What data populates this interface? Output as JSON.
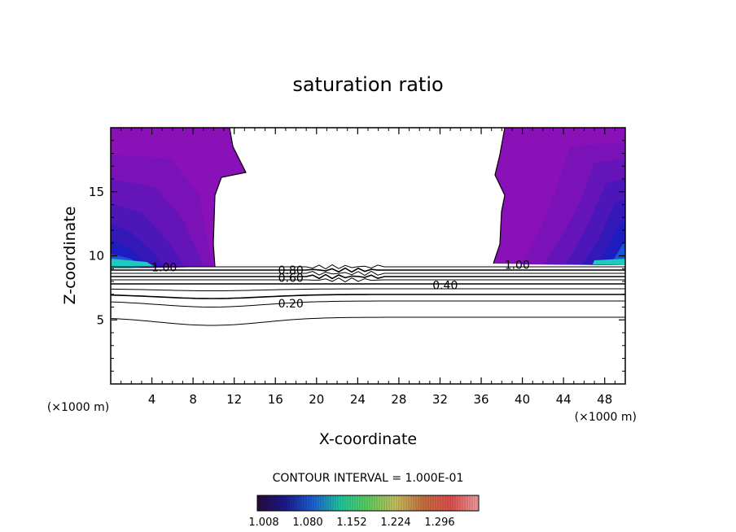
{
  "chart_data": {
    "type": "contour",
    "title": "saturation ratio",
    "xlabel": "X-coordinate",
    "ylabel": "Z-coordinate",
    "x_unit": "(×1000 m)",
    "y_unit": "(×1000 m)",
    "xlim": [
      0,
      50
    ],
    "ylim": [
      0,
      20
    ],
    "x_ticks": [
      4,
      8,
      12,
      16,
      20,
      24,
      28,
      32,
      36,
      40,
      44,
      48
    ],
    "y_ticks": [
      5,
      10,
      15
    ],
    "contour_interval_text": "CONTOUR INTERVAL = 1.000E-01",
    "contour_levels": [
      0.1,
      0.2,
      0.3,
      0.4,
      0.5,
      0.6,
      0.7,
      0.8,
      0.9,
      1.0
    ],
    "contour_labels": [
      {
        "text": "1.00",
        "x": 5.2,
        "z": 9.1
      },
      {
        "text": "1.00",
        "x": 39.5,
        "z": 9.3
      },
      {
        "text": "0.80",
        "x": 17.5,
        "z": 8.9
      },
      {
        "text": "0.60",
        "x": 17.5,
        "z": 8.3
      },
      {
        "text": "0.40",
        "x": 32.5,
        "z": 7.7
      },
      {
        "text": "0.20",
        "x": 17.5,
        "z": 6.3
      }
    ],
    "colorbar": {
      "ticks": [
        "1.008",
        "1.080",
        "1.152",
        "1.224",
        "1.296"
      ],
      "colors": [
        "#2a0a3a",
        "#1a1a8c",
        "#1f5fd6",
        "#1fc8a0",
        "#5fd05f",
        "#c8c060",
        "#c87040",
        "#e05050",
        "#f0a0a0"
      ]
    },
    "fill_colors": [
      "#8a10b8",
      "#7a12b8",
      "#6414b8",
      "#4c16b8",
      "#3418b8",
      "#1e1cc0",
      "#1a55d6",
      "#1fc8c0"
    ],
    "grid": false
  }
}
